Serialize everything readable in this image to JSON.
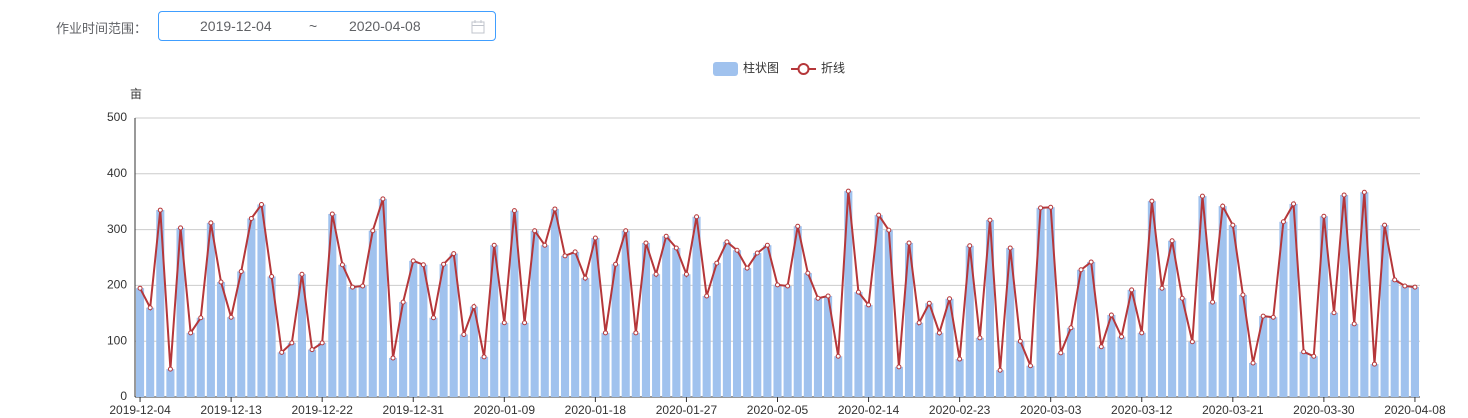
{
  "form": {
    "label": "作业时间范围：",
    "start": "2019-12-04",
    "separator": "~",
    "end": "2020-04-08"
  },
  "chart_data": {
    "type": "bar-line",
    "y_label": "亩",
    "categories": [
      "2019-12-04",
      null,
      null,
      null,
      null,
      null,
      null,
      null,
      null,
      "2019-12-13",
      null,
      null,
      null,
      null,
      null,
      null,
      null,
      null,
      "2019-12-22",
      null,
      null,
      null,
      null,
      null,
      null,
      null,
      null,
      "2019-12-31",
      null,
      null,
      null,
      null,
      null,
      null,
      null,
      null,
      "2020-01-09",
      null,
      null,
      null,
      null,
      null,
      null,
      null,
      null,
      "2020-01-18",
      null,
      null,
      null,
      null,
      null,
      null,
      null,
      null,
      "2020-01-27",
      null,
      null,
      null,
      null,
      null,
      null,
      null,
      null,
      "2020-02-05",
      null,
      null,
      null,
      null,
      null,
      null,
      null,
      null,
      "2020-02-14",
      null,
      null,
      null,
      null,
      null,
      null,
      null,
      null,
      "2020-02-23",
      null,
      null,
      null,
      null,
      null,
      null,
      null,
      null,
      "2020-03-03",
      null,
      null,
      null,
      null,
      null,
      null,
      null,
      null,
      "2020-03-12",
      null,
      null,
      null,
      null,
      null,
      null,
      null,
      null,
      "2020-03-21",
      null,
      null,
      null,
      null,
      null,
      null,
      null,
      null,
      "2020-03-30",
      null,
      null,
      null,
      null,
      null,
      null,
      null,
      null,
      "2020-04-08"
    ],
    "series": [
      {
        "name": "柱状图",
        "type": "bar",
        "color": "#a0c2ee",
        "values": [
          195,
          160,
          335,
          50,
          303,
          115,
          142,
          312,
          206,
          143,
          225,
          320,
          345,
          216,
          80,
          97,
          220,
          85,
          97,
          328,
          237,
          197,
          199,
          298,
          355,
          70,
          170,
          244,
          237,
          142,
          238,
          257,
          112,
          162,
          72,
          272,
          133,
          334,
          133,
          298,
          272,
          337,
          253,
          260,
          213,
          285,
          115,
          238,
          298,
          115,
          276,
          220,
          288,
          267,
          220,
          323,
          181,
          240,
          278,
          263,
          231,
          258,
          272,
          201,
          199,
          306,
          222,
          177,
          181,
          73,
          369,
          188,
          165,
          326,
          299,
          54,
          276,
          133,
          168,
          115,
          176,
          68,
          271,
          106,
          317,
          48,
          267,
          100,
          56,
          339,
          340,
          79,
          124,
          228,
          242,
          90,
          147,
          108,
          192,
          115,
          351,
          195,
          280,
          177,
          99,
          360,
          170,
          342,
          308,
          183,
          61,
          145,
          143,
          314,
          346,
          81,
          73,
          324,
          151,
          362,
          131,
          367,
          59,
          308,
          210,
          199,
          197
        ]
      },
      {
        "name": "折线",
        "type": "line",
        "color": "#b5373a",
        "values": [
          195,
          160,
          335,
          50,
          303,
          115,
          142,
          312,
          206,
          143,
          225,
          320,
          345,
          216,
          80,
          97,
          220,
          85,
          97,
          328,
          237,
          197,
          199,
          298,
          355,
          70,
          170,
          244,
          237,
          142,
          238,
          257,
          112,
          162,
          72,
          272,
          133,
          334,
          133,
          298,
          272,
          337,
          253,
          260,
          213,
          285,
          115,
          238,
          298,
          115,
          276,
          220,
          288,
          267,
          220,
          323,
          181,
          240,
          278,
          263,
          231,
          258,
          272,
          201,
          199,
          306,
          222,
          177,
          181,
          73,
          369,
          188,
          165,
          326,
          299,
          54,
          276,
          133,
          168,
          115,
          176,
          68,
          271,
          106,
          317,
          48,
          267,
          100,
          56,
          339,
          340,
          79,
          124,
          228,
          242,
          90,
          147,
          108,
          192,
          115,
          351,
          195,
          280,
          177,
          99,
          360,
          170,
          342,
          308,
          183,
          61,
          145,
          143,
          314,
          346,
          81,
          73,
          324,
          151,
          362,
          131,
          367,
          59,
          308,
          210,
          199,
          197
        ]
      }
    ],
    "ylim": [
      0,
      500
    ],
    "yticks": [
      0,
      100,
      200,
      300,
      400,
      500
    ],
    "grid": true
  }
}
